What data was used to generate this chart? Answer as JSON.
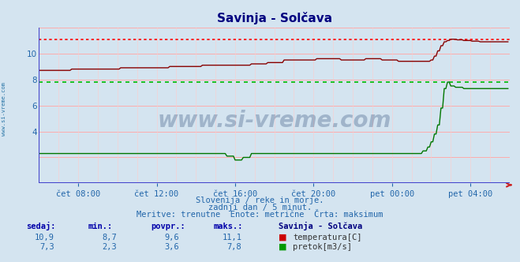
{
  "title": "Savinja - Solčava",
  "bg_color": "#d4e4f0",
  "plot_bg_color": "#d4e4f0",
  "grid_color_h": "#ffaaaa",
  "grid_color_v": "#ffcccc",
  "temp_color": "#880000",
  "flow_color": "#007700",
  "temp_max_color": "#ff0000",
  "flow_max_color": "#00bb00",
  "left_spine_color": "#4444cc",
  "bottom_line_color": "#4444cc",
  "arrow_color": "#cc2222",
  "ylim": [
    0,
    12
  ],
  "yticks": [
    4,
    6,
    8,
    10
  ],
  "xlim_max": 288,
  "xtick_positions": [
    24,
    72,
    120,
    168,
    216,
    264
  ],
  "xtick_labels": [
    "čet 08:00",
    "čet 12:00",
    "čet 16:00",
    "čet 20:00",
    "pet 00:00",
    "pet 04:00"
  ],
  "temp_max": 11.1,
  "flow_max": 7.8,
  "temp_current": 10.9,
  "temp_min": 8.7,
  "temp_avg": 9.6,
  "flow_current": 7.3,
  "flow_min": 2.3,
  "flow_avg": 3.6,
  "footer_line1": "Slovenija / reke in morje.",
  "footer_line2": "zadnji dan / 5 minut.",
  "footer_line3": "Meritve: trenutne  Enote: metrične  Črta: maksimum",
  "label_sedaj": "sedaj:",
  "label_min": "min.:",
  "label_povpr": "povpr.:",
  "label_maks": "maks.:",
  "label_station": "Savinja - Solčava",
  "label_temp": "temperatura[C]",
  "label_flow": "pretok[m3/s]",
  "watermark": "www.si-vreme.com",
  "watermark_color": "#1a3a6a",
  "left_label": "www.si-vreme.com",
  "left_label_color": "#2874a6",
  "text_color": "#2266aa",
  "header_color": "#0000aa",
  "station_color": "#000080"
}
